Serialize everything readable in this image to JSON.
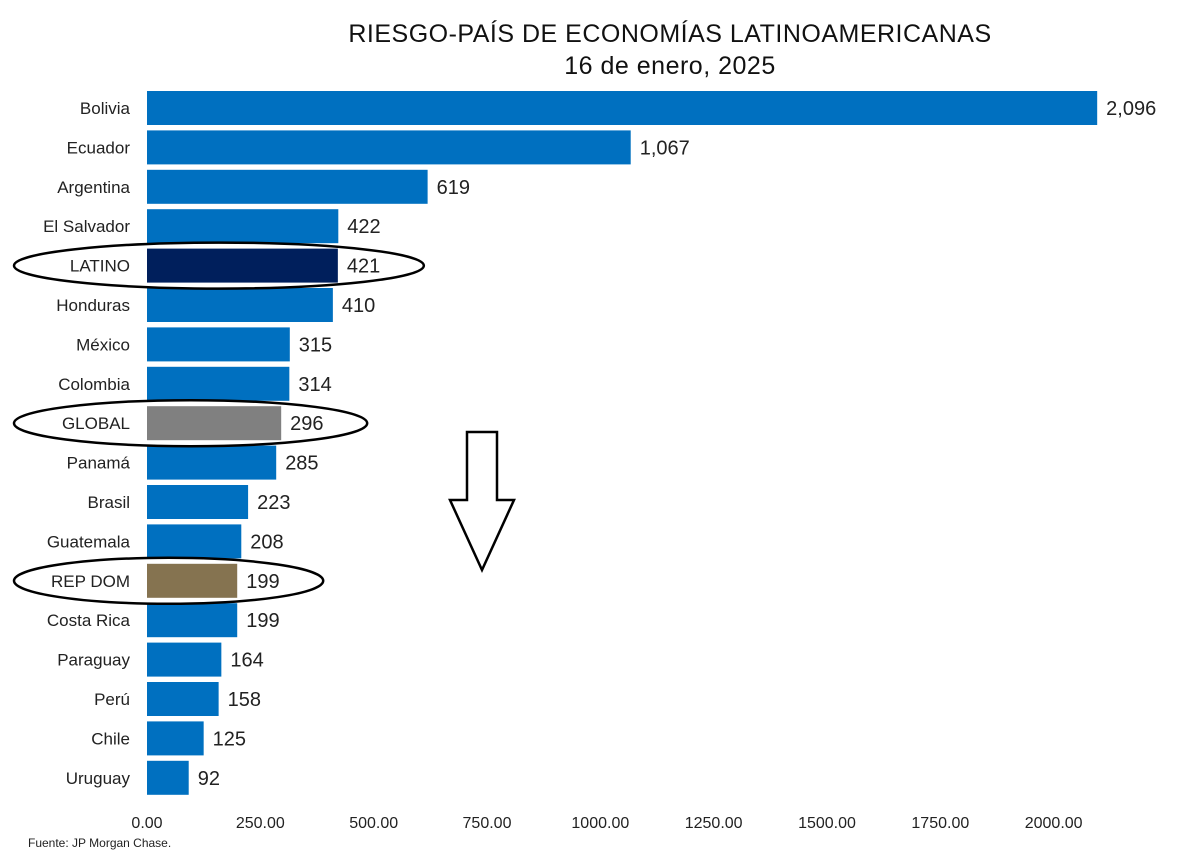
{
  "chart_data": {
    "type": "bar",
    "orientation": "horizontal",
    "title": "RIESGO-PAÍS DE ECONOMÍAS LATINOAMERICANAS",
    "subtitle": "16 de enero, 2025",
    "categories": [
      "Bolivia",
      "Ecuador",
      "Argentina",
      "El Salvador",
      "LATINO",
      "Honduras",
      "México",
      "Colombia",
      "GLOBAL",
      "Panamá",
      "Brasil",
      "Guatemala",
      "REP DOM",
      "Costa Rica",
      "Paraguay",
      "Perú",
      "Chile",
      "Uruguay"
    ],
    "values": [
      2096,
      1067,
      619,
      422,
      421,
      410,
      315,
      314,
      296,
      285,
      223,
      208,
      199,
      199,
      164,
      158,
      125,
      92
    ],
    "value_labels": [
      "2,096",
      "1,067",
      "619",
      "422",
      "421",
      "410",
      "315",
      "314",
      "296",
      "285",
      "223",
      "208",
      "199",
      "199",
      "164",
      "158",
      "125",
      "92"
    ],
    "xlim": [
      0,
      2100
    ],
    "x_ticks": [
      0,
      250,
      500,
      750,
      1000,
      1250,
      1500,
      1750,
      2000
    ],
    "x_tick_labels": [
      "0.00",
      "250.00",
      "500.00",
      "750.00",
      "1000.00",
      "1250.00",
      "1500.00",
      "1750.00",
      "2000.00"
    ],
    "grid": false,
    "legend": "none",
    "highlighted": [
      "LATINO",
      "GLOBAL",
      "REP DOM"
    ],
    "colors": {
      "default": "#0070c0",
      "LATINO": "#001f5c",
      "GLOBAL": "#808080",
      "REP DOM": "#857350"
    },
    "annotations": [
      "ellipse around LATINO",
      "ellipse around GLOBAL",
      "ellipse around REP DOM",
      "down-arrow"
    ]
  },
  "source": "Fuente: JP Morgan Chase."
}
